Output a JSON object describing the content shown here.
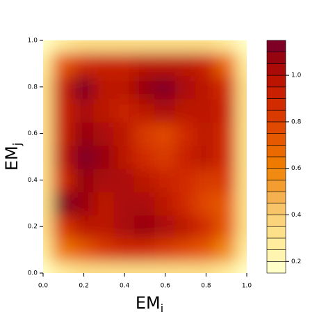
{
  "chart_data": {
    "type": "filled-contour",
    "xlabel": {
      "text": "EM",
      "sub": "i"
    },
    "ylabel": {
      "text": "EM",
      "sub": "j"
    },
    "x": [
      0,
      0.1,
      0.2,
      0.3,
      0.4,
      0.5,
      0.6,
      0.7,
      0.8,
      0.9,
      1
    ],
    "y": [
      0,
      0.1,
      0.2,
      0.3,
      0.4,
      0.5,
      0.6,
      0.7,
      0.8,
      0.9,
      1
    ],
    "z": [
      [
        0.15,
        0.25,
        0.3,
        0.3,
        0.3,
        0.3,
        0.3,
        0.3,
        0.3,
        0.25,
        0.15
      ],
      [
        0.25,
        0.6,
        0.7,
        0.8,
        0.85,
        0.85,
        0.8,
        0.75,
        0.7,
        0.55,
        0.25
      ],
      [
        0.3,
        0.8,
        0.95,
        0.95,
        1.0,
        1.05,
        1.0,
        0.95,
        0.85,
        0.7,
        0.3
      ],
      [
        0.3,
        1.1,
        1.05,
        0.95,
        1.0,
        1.0,
        0.95,
        0.85,
        0.75,
        0.7,
        0.3
      ],
      [
        0.3,
        0.85,
        1.05,
        1.0,
        1.0,
        0.95,
        0.9,
        0.85,
        0.8,
        0.8,
        0.3
      ],
      [
        0.3,
        0.95,
        1.15,
        1.05,
        0.95,
        0.85,
        0.8,
        0.9,
        0.95,
        0.85,
        0.3
      ],
      [
        0.3,
        0.9,
        1.05,
        1.0,
        0.95,
        0.8,
        0.75,
        0.85,
        0.95,
        0.85,
        0.3
      ],
      [
        0.3,
        0.9,
        1.0,
        0.95,
        0.9,
        0.95,
        1.0,
        0.95,
        0.95,
        0.9,
        0.3
      ],
      [
        0.3,
        0.9,
        1.1,
        0.95,
        0.95,
        1.05,
        1.12,
        1.0,
        0.95,
        0.85,
        0.3
      ],
      [
        0.25,
        0.7,
        0.85,
        0.9,
        0.9,
        0.95,
        0.95,
        0.95,
        0.9,
        0.65,
        0.25
      ],
      [
        0.15,
        0.25,
        0.3,
        0.3,
        0.3,
        0.3,
        0.3,
        0.3,
        0.3,
        0.25,
        0.15
      ]
    ],
    "levels": [
      0.15,
      0.2,
      0.25,
      0.3,
      0.35,
      0.4,
      0.45,
      0.5,
      0.55,
      0.6,
      0.65,
      0.7,
      0.75,
      0.8,
      0.85,
      0.9,
      0.95,
      1.0,
      1.05,
      1.1,
      1.15
    ],
    "colors": [
      "#ffffc8",
      "#fff5b0",
      "#ffec9c",
      "#fde08a",
      "#fbd37a",
      "#f8c46a",
      "#f5b050",
      "#f39d30",
      "#f08a10",
      "#ee7a00",
      "#ea6a00",
      "#e55a00",
      "#e04a00",
      "#d83a00",
      "#d02c00",
      "#c82000",
      "#bb1400",
      "#aa0a08",
      "#960410",
      "#7f0026"
    ],
    "xlim": [
      0,
      1
    ],
    "ylim": [
      0,
      1
    ],
    "xticks": [
      {
        "value": 0,
        "label": "0.0"
      },
      0.2,
      0.4,
      0.6,
      0.8,
      {
        "value": 1,
        "label": "1.0"
      }
    ],
    "yticks": [
      {
        "value": 0,
        "label": "0.0"
      },
      0.2,
      0.4,
      0.6,
      0.8,
      {
        "value": 1,
        "label": "1.0"
      }
    ],
    "colorbar_ticks": [
      0.2,
      0.4,
      0.6,
      0.8,
      {
        "value": 1,
        "label": "1.0"
      }
    ]
  }
}
